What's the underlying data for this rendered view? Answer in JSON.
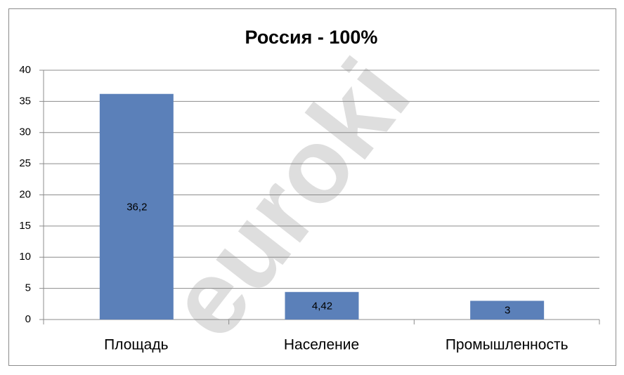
{
  "chart_data": {
    "type": "bar",
    "title": "Россия - 100%",
    "categories": [
      "Площадь",
      "Население",
      "Промышленность"
    ],
    "values": [
      36.2,
      4.42,
      3
    ],
    "value_labels": [
      "36,2",
      "4,42",
      "3"
    ],
    "color": "#5b80b9",
    "ylim": [
      0,
      40
    ],
    "yticks": [
      0,
      5,
      10,
      15,
      20,
      25,
      30,
      35,
      40
    ],
    "grid": true,
    "watermark": "euroki"
  }
}
